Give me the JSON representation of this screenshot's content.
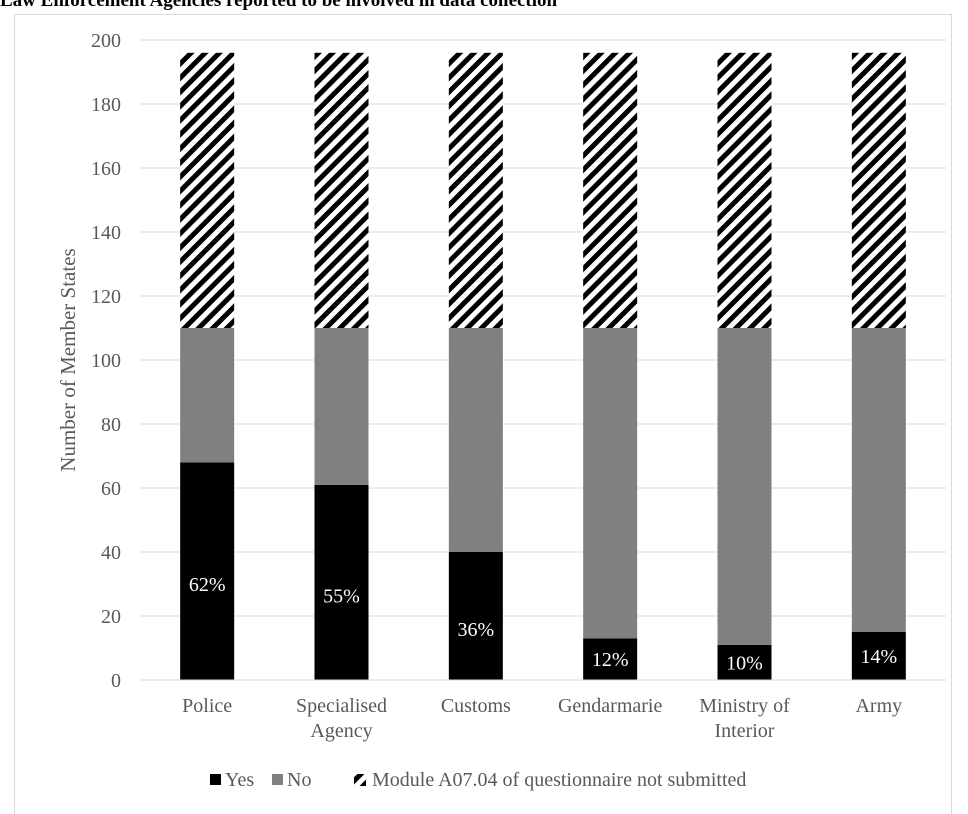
{
  "chart_data": {
    "type": "bar",
    "stacked": true,
    "title": "Law Enforcement Agencies reported to be involved in data collection",
    "ylabel": "Number of Member States",
    "xlabel": "",
    "ylim": [
      0,
      200
    ],
    "yticks": [
      0,
      20,
      40,
      60,
      80,
      100,
      120,
      140,
      160,
      180,
      200
    ],
    "grid": true,
    "legend_position": "bottom",
    "categories": [
      [
        "Police"
      ],
      [
        "Specialised",
        "Agency"
      ],
      [
        "Customs"
      ],
      [
        "Gendarmarie"
      ],
      [
        "Ministry of",
        "Interior"
      ],
      [
        "Army"
      ]
    ],
    "series": [
      {
        "name": "Yes",
        "values": [
          68,
          61,
          40,
          13,
          11,
          15
        ],
        "color": "#000000",
        "pattern": "solid"
      },
      {
        "name": "No",
        "values": [
          42,
          49,
          70,
          97,
          99,
          95
        ],
        "color": "#808080",
        "pattern": "solid"
      },
      {
        "name": "Module A07.04 of questionnaire not submitted",
        "values": [
          86,
          86,
          86,
          86,
          86,
          86
        ],
        "color": "#000000",
        "pattern": "diagonal-stripes"
      }
    ],
    "data_labels": [
      "62%",
      "55%",
      "36%",
      "12%",
      "10%",
      "14%"
    ],
    "label_color": "#ffffff"
  }
}
